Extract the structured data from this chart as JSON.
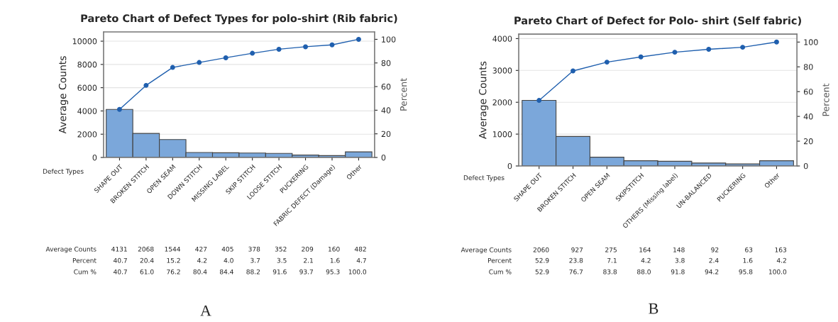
{
  "chart_data": [
    {
      "type": "bar",
      "title": "Pareto Chart of Defect Types for polo-shirt (Rib fabric)",
      "xlabel": "Defect Types",
      "ylabel": "Average Counts",
      "y2label": "Percent",
      "categories": [
        "SHAPE OUT",
        "BROKEN STITCH",
        "OPEN SEAM",
        "DOWN STITCH",
        "MISSING LABEL",
        "SKIP STITCH",
        "LOOSE STITCH",
        "PUCKERING",
        "FABRIC DEFECT (Damage)",
        "Other"
      ],
      "series": [
        {
          "color": "#7ba7da",
          "values": [
            4131,
            2068,
            1544,
            427,
            405,
            378,
            352,
            209,
            160,
            482
          ],
          "value_labels": [
            "4131",
            "2068",
            "1544",
            "427",
            "405",
            "378",
            "352",
            "209",
            "160",
            "482"
          ]
        },
        {
          "type": "line",
          "axis": "y2",
          "color": "#1f5fae",
          "marker": "circle",
          "values": [
            40.7,
            61.0,
            76.2,
            80.4,
            84.4,
            88.2,
            91.6,
            93.7,
            95.3,
            100.0
          ],
          "value_labels": [
            "40.7",
            "61.0",
            "76.2",
            "80.4",
            "84.4",
            "88.2",
            "91.6",
            "93.7",
            "95.3",
            "100.0"
          ]
        }
      ],
      "ylim": [
        0,
        10800
      ],
      "yticks": [
        0,
        2000,
        4000,
        6000,
        8000,
        10000
      ],
      "y2lim": [
        0,
        106.3
      ],
      "y2ticks": [
        0,
        20,
        40,
        60,
        80,
        100
      ],
      "grid": "y",
      "annotations": [
        "A",
        "Average Counts",
        "Percent",
        "Cum %",
        "40.7",
        "20.4",
        "15.2",
        "4.2",
        "4.0",
        "3.7",
        "3.5",
        "2.1",
        "1.6",
        "4.7"
      ]
    },
    {
      "type": "bar",
      "title": "Pareto Chart of Defect for Polo- shirt (Self fabric)",
      "xlabel": "Defect Types",
      "ylabel": "Average Counts",
      "y2label": "Percent",
      "categories": [
        "SHAPE OUT",
        "BROKEN STITCH",
        "OPEN SEAM",
        "SKIPSTITCH",
        "OTHERS (Missing label)",
        "UN-BALANCED",
        "PUCKERING",
        "Other"
      ],
      "series": [
        {
          "color": "#7ba7da",
          "values": [
            2060,
            927,
            275,
            164,
            148,
            92,
            63,
            163
          ],
          "value_labels": [
            "2060",
            "927",
            "275",
            "164",
            "148",
            "92",
            "63",
            "163"
          ]
        },
        {
          "type": "line",
          "axis": "y2",
          "color": "#1f5fae",
          "marker": "circle",
          "values": [
            52.9,
            76.7,
            83.8,
            88.0,
            91.8,
            94.2,
            95.8,
            100.0
          ],
          "value_labels": [
            "52.9",
            "76.7",
            "83.8",
            "88.0",
            "91.8",
            "94.2",
            "95.8",
            "100.0"
          ]
        }
      ],
      "ylim": [
        0,
        4140
      ],
      "yticks": [
        0,
        1000,
        2000,
        3000,
        4000
      ],
      "y2lim": [
        0,
        106.4
      ],
      "y2ticks": [
        0,
        20,
        40,
        60,
        80,
        100
      ],
      "grid": "y",
      "annotations": [
        "B",
        "Average Counts",
        "Percent",
        "Cum %",
        "52.9",
        "23.8",
        "7.1",
        "4.2",
        "3.8",
        "2.4",
        "1.6",
        "4.2"
      ]
    }
  ]
}
